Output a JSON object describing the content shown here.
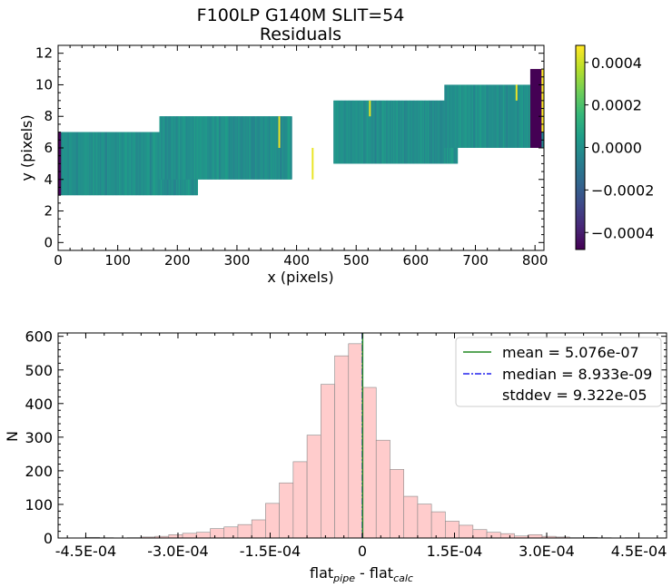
{
  "figure": {
    "title_line1": "F100LP   G140M   SLIT=54",
    "title_line2": "Residuals"
  },
  "chart_data": [
    {
      "type": "heatmap",
      "title": "F100LP   G140M   SLIT=54\nResiduals",
      "xlabel": "x (pixels)",
      "ylabel": "y (pixels)",
      "xlim": [
        0,
        815
      ],
      "ylim": [
        -0.5,
        12.5
      ],
      "xticks": [
        "0",
        "100",
        "200",
        "300",
        "400",
        "500",
        "600",
        "700",
        "800"
      ],
      "yticks": [
        "0",
        "2",
        "4",
        "6",
        "8",
        "10",
        "12"
      ],
      "colormap": "viridis",
      "colorbar": {
        "range": [
          -0.00048,
          0.00048
        ],
        "ticks": [
          "0.0004",
          "0.0002",
          "0.0000",
          "−0.0002",
          "−0.0004"
        ],
        "tick_values": [
          0.0004,
          0.0002,
          0.0,
          -0.0002,
          -0.0004
        ]
      },
      "segments": [
        {
          "x0": 0,
          "x1": 234,
          "y0": 3,
          "y1": 7
        },
        {
          "x0": 170,
          "x1": 391,
          "y0": 4,
          "y1": 8
        },
        {
          "x0": 462,
          "x1": 670,
          "y0": 5,
          "y1": 9
        },
        {
          "x0": 648,
          "x1": 815,
          "y0": 6,
          "y1": 10
        }
      ],
      "blocks": [
        {
          "x0": 0,
          "x1": 5,
          "y0": 3,
          "y1": 7,
          "value": -0.00048
        },
        {
          "x0": 792,
          "x1": 811,
          "y0": 6,
          "y1": 11,
          "value": -0.00048
        },
        {
          "x0": 811,
          "x1": 815,
          "y0": 7,
          "y1": 11,
          "value": 0.00048
        }
      ],
      "bright_lines": [
        {
          "x": 371,
          "y0": 6,
          "y1": 8
        },
        {
          "x": 427,
          "y0": 4,
          "y1": 6
        },
        {
          "x": 523,
          "y0": 8,
          "y1": 9
        },
        {
          "x": 769,
          "y0": 9,
          "y1": 10
        }
      ]
    },
    {
      "type": "bar",
      "title": "",
      "xlabel": "flat",
      "xlabel_sub1": "pipe",
      "xlabel_mid": " - flat",
      "xlabel_sub2": "calc",
      "ylabel": "N",
      "xlim": [
        -0.000495,
        0.000495
      ],
      "ylim": [
        0,
        610
      ],
      "xticks": [
        "-4.5E-04",
        "-3.0E-04",
        "-1.5E-04",
        "0",
        "1.5E-04",
        "3.0E-04",
        "4.5E-04"
      ],
      "xtick_values": [
        -0.00045,
        -0.0003,
        -0.00015,
        0,
        0.00015,
        0.0003,
        0.00045
      ],
      "yticks": [
        "0",
        "100",
        "200",
        "300",
        "400",
        "500",
        "600"
      ],
      "bin_width": 2.25e-05,
      "bin_edges_start": -0.0004725,
      "counts": [
        0,
        2,
        1,
        0,
        1,
        3,
        5,
        10,
        14,
        17,
        28,
        33,
        40,
        54,
        103,
        164,
        227,
        306,
        457,
        542,
        578,
        448,
        291,
        204,
        124,
        101,
        78,
        50,
        38,
        25,
        17,
        13,
        6,
        10,
        5,
        3,
        1,
        2,
        1,
        0,
        1,
        0
      ],
      "bar_color": "#ffcccc",
      "bar_edge": "#888888",
      "mean_color": "#228822",
      "median_color": "#2222ee",
      "mean": 5.076e-07,
      "median": 8.933e-09,
      "legend": {
        "placement": "upper right",
        "mean_label": "mean = 5.076e-07",
        "median_label": "median = 8.933e-09",
        "stddev_label": "stddev = 9.322e-05"
      }
    }
  ]
}
